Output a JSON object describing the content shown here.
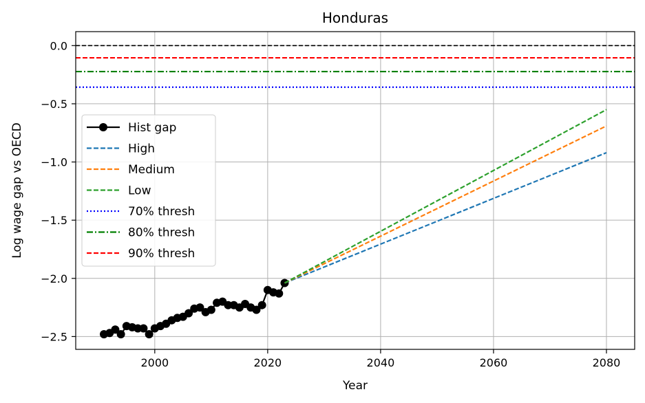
{
  "chart_data": {
    "type": "line",
    "title": "Honduras",
    "xlabel": "Year",
    "ylabel": "Log wage gap vs OECD",
    "xlim": [
      1986,
      2085
    ],
    "ylim": [
      -2.61,
      0.12
    ],
    "xticks": [
      2000,
      2020,
      2040,
      2060,
      2080
    ],
    "yticks": [
      0.0,
      -0.5,
      -1.0,
      -1.5,
      -2.0,
      -2.5
    ],
    "ytick_labels": [
      "0.0",
      "−0.5",
      "−1.0",
      "−1.5",
      "−2.0",
      "−2.5"
    ],
    "grid": true,
    "legend_position": "center-left",
    "series": [
      {
        "name": "Hist gap",
        "color": "#000000",
        "style": "solid-markers",
        "x": [
          1991,
          1992,
          1993,
          1994,
          1995,
          1996,
          1997,
          1998,
          1999,
          2000,
          2001,
          2002,
          2003,
          2004,
          2005,
          2006,
          2007,
          2008,
          2009,
          2010,
          2011,
          2012,
          2013,
          2014,
          2015,
          2016,
          2017,
          2018,
          2019,
          2020,
          2021,
          2022,
          2023
        ],
        "y": [
          -2.48,
          -2.47,
          -2.44,
          -2.48,
          -2.41,
          -2.42,
          -2.43,
          -2.43,
          -2.48,
          -2.43,
          -2.41,
          -2.39,
          -2.36,
          -2.34,
          -2.33,
          -2.3,
          -2.26,
          -2.25,
          -2.29,
          -2.27,
          -2.21,
          -2.2,
          -2.23,
          -2.23,
          -2.25,
          -2.22,
          -2.25,
          -2.27,
          -2.23,
          -2.1,
          -2.12,
          -2.13,
          -2.04
        ]
      },
      {
        "name": "High",
        "color": "#1f77b4",
        "style": "dashed",
        "x": [
          2023,
          2080
        ],
        "y": [
          -2.04,
          -0.92
        ]
      },
      {
        "name": "Medium",
        "color": "#ff7f0e",
        "style": "dashed",
        "x": [
          2023,
          2080
        ],
        "y": [
          -2.04,
          -0.69
        ]
      },
      {
        "name": "Low",
        "color": "#2ca02c",
        "style": "dashed",
        "x": [
          2023,
          2080
        ],
        "y": [
          -2.04,
          -0.55
        ]
      },
      {
        "name": "70% thresh",
        "color": "#0000ff",
        "style": "dotted",
        "hline": -0.357
      },
      {
        "name": "80% thresh",
        "color": "#008000",
        "style": "dashdot",
        "hline": -0.223
      },
      {
        "name": "90% thresh",
        "color": "#ff0000",
        "style": "dashed",
        "hline": -0.105
      }
    ],
    "reference_line": {
      "y": 0.0,
      "color": "#000000",
      "style": "dashed"
    }
  }
}
